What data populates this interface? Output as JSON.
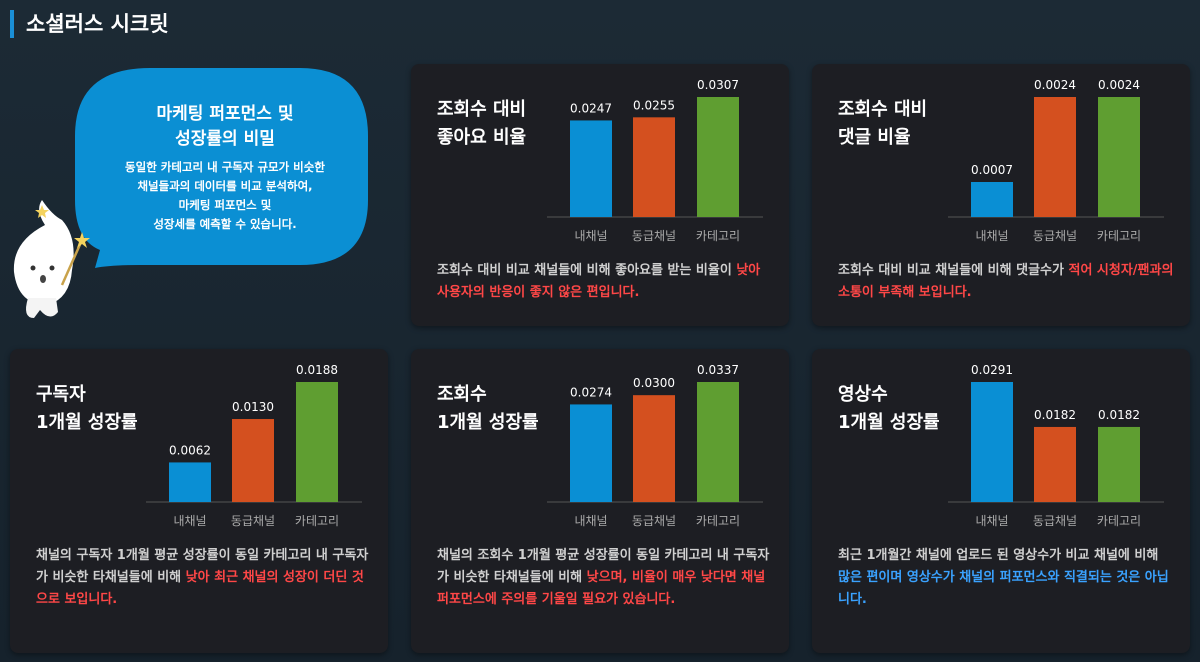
{
  "header": {
    "title": "소셜러스 시크릿"
  },
  "bubble": {
    "title": [
      "마케팅 퍼포먼스 및",
      "성장률의 비밀"
    ],
    "text": [
      "동일한 카테고리 내 구독자 규모가 비슷한",
      "채널들과의 데이터를 비교 분석하여,",
      "마케팅 퍼포먼스 및",
      "성장세를 예측할 수 있습니다."
    ]
  },
  "chart_data": [
    {
      "type": "bar",
      "title": [
        "조회수 대비",
        "좋아요 비율"
      ],
      "categories": [
        "내채널",
        "동급채널",
        "카테고리"
      ],
      "values": [
        0.0247,
        0.0255,
        0.0307
      ],
      "colors": [
        "#0a8fd4",
        "#d4501f",
        "#5f9e31"
      ],
      "description": [
        {
          "text": "조회수 대비 비교 채널들에 비해 좋아요를 받는 비율이 "
        },
        {
          "text": "낮아 사용자의 반응이 좋지 않은 편입니다.",
          "color": "#ff4747"
        }
      ]
    },
    {
      "type": "bar",
      "title": [
        "조회수 대비",
        "댓글 비율"
      ],
      "categories": [
        "내채널",
        "동급채널",
        "카테고리"
      ],
      "values": [
        0.0007,
        0.0024,
        0.0024
      ],
      "colors": [
        "#0a8fd4",
        "#d4501f",
        "#5f9e31"
      ],
      "description": [
        {
          "text": "조회수 대비 비교 채널들에 비해 댓글수가 "
        },
        {
          "text": "적어 시청자/팬과의 소통이 부족해 보입니다.",
          "color": "#ff4747"
        }
      ]
    },
    {
      "type": "bar",
      "title": [
        "구독자",
        "1개월 성장률"
      ],
      "categories": [
        "내채널",
        "동급채널",
        "카테고리"
      ],
      "values": [
        0.0062,
        0.013,
        0.0188
      ],
      "value_labels": [
        "0.0062",
        "0.0130",
        "0.0188"
      ],
      "colors": [
        "#0a8fd4",
        "#d4501f",
        "#5f9e31"
      ],
      "description": [
        {
          "text": "채널의 구독자 1개월 평균 성장률이 동일 카테고리 내 구독자가 비슷한 타채널들에 비해 "
        },
        {
          "text": "낮아 최근 채널의 성장이 더딘 것으로 보입니다.",
          "color": "#ff4747"
        }
      ]
    },
    {
      "type": "bar",
      "title": [
        "조회수",
        "1개월 성장률"
      ],
      "categories": [
        "내채널",
        "동급채널",
        "카테고리"
      ],
      "values": [
        0.0274,
        0.03,
        0.0337
      ],
      "value_labels": [
        "0.0274",
        "0.0300",
        "0.0337"
      ],
      "colors": [
        "#0a8fd4",
        "#d4501f",
        "#5f9e31"
      ],
      "description": [
        {
          "text": "채널의 조회수 1개월 평균 성장률이 동일 카테고리 내 구독자가 비슷한 타채널들에 비해 "
        },
        {
          "text": "낮으며, 비율이 매우 낮다면 채널 퍼포먼스에 주의를 기울일 필요가 있습니다.",
          "color": "#ff4747"
        }
      ]
    },
    {
      "type": "bar",
      "title": [
        "영상수",
        "1개월 성장률"
      ],
      "categories": [
        "내채널",
        "동급채널",
        "카테고리"
      ],
      "values": [
        0.0291,
        0.0182,
        0.0182
      ],
      "colors": [
        "#0a8fd4",
        "#d4501f",
        "#5f9e31"
      ],
      "description": [
        {
          "text": "최근 1개월간 채널에 업로드 된 영상수가 비교 채널에 비해 "
        },
        {
          "text": "많은 편이며 영상수가 채널의 퍼포먼스와 직결되는 것은 아닙니다.",
          "color": "#3aa2ff"
        }
      ]
    }
  ]
}
